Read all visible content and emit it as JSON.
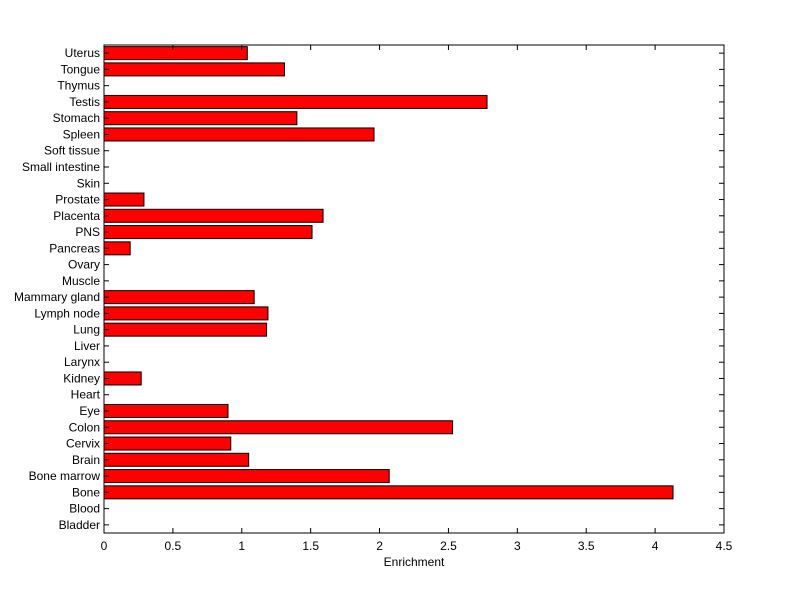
{
  "chart_data": {
    "type": "bar",
    "orientation": "horizontal",
    "title": "",
    "xlabel": "Enrichment",
    "ylabel": "",
    "xlim": [
      0,
      4.5
    ],
    "x_ticks": [
      0,
      0.5,
      1,
      1.5,
      2,
      2.5,
      3,
      3.5,
      4,
      4.5
    ],
    "x_tick_labels": [
      "0",
      "0.5",
      "1",
      "1.5",
      "2",
      "2.5",
      "3",
      "3.5",
      "4",
      "4.5"
    ],
    "grid": false,
    "legend": "none",
    "bar_color": "#ff0000",
    "bar_edge_color": "#000000",
    "categories": [
      "Bladder",
      "Blood",
      "Bone",
      "Bone marrow",
      "Brain",
      "Cervix",
      "Colon",
      "Eye",
      "Heart",
      "Kidney",
      "Larynx",
      "Liver",
      "Lung",
      "Lymph node",
      "Mammary gland",
      "Muscle",
      "Ovary",
      "Pancreas",
      "PNS",
      "Placenta",
      "Prostate",
      "Skin",
      "Small intestine",
      "Soft tissue",
      "Spleen",
      "Stomach",
      "Testis",
      "Thymus",
      "Tongue",
      "Uterus"
    ],
    "values": [
      0,
      0,
      4.13,
      2.07,
      1.05,
      0.92,
      2.53,
      0.9,
      0,
      0.27,
      0,
      0,
      1.18,
      1.19,
      1.09,
      0,
      0,
      0.19,
      1.51,
      1.59,
      0.29,
      0,
      0,
      0,
      1.96,
      1.4,
      2.78,
      0,
      1.31,
      1.04
    ]
  }
}
